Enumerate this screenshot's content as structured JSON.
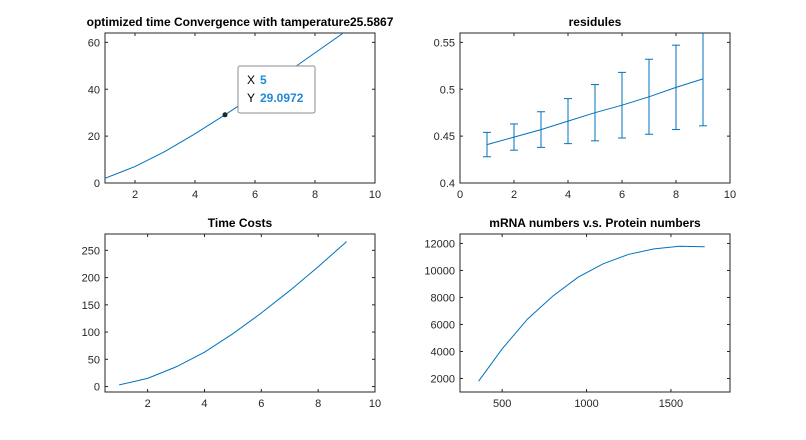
{
  "chart_data": [
    {
      "type": "line",
      "title": "optimized time Convergence with tamperature25.5867",
      "xlim": [
        1,
        10
      ],
      "ylim": [
        0,
        64
      ],
      "xticks": [
        2,
        4,
        6,
        8,
        10
      ],
      "yticks": [
        0,
        20,
        40,
        60
      ],
      "x": [
        1,
        2,
        3,
        4,
        5,
        6,
        7,
        8,
        9
      ],
      "y": [
        2,
        7,
        13.5,
        21,
        29.0972,
        37.5,
        46.5,
        55.5,
        64.5
      ],
      "color": "#0072BD",
      "datatip": {
        "x_label": "X",
        "x_value": "5",
        "y_label": "Y",
        "y_value": "29.0972",
        "x": 5,
        "y": 29.0972
      }
    },
    {
      "type": "line",
      "title": "residules",
      "xlim": [
        0,
        10
      ],
      "ylim": [
        0.4,
        0.56
      ],
      "xticks": [
        0,
        2,
        4,
        6,
        8,
        10
      ],
      "yticks": [
        0.4,
        0.45,
        0.5,
        0.55
      ],
      "x": [
        1,
        2,
        3,
        4,
        5,
        6,
        7,
        8,
        9
      ],
      "y": [
        0.441,
        0.449,
        0.457,
        0.466,
        0.475,
        0.483,
        0.492,
        0.502,
        0.511
      ],
      "err": [
        0.013,
        0.014,
        0.019,
        0.024,
        0.03,
        0.035,
        0.04,
        0.045,
        0.05
      ],
      "color": "#0072BD"
    },
    {
      "type": "line",
      "title": "Time Costs",
      "xlim": [
        0.5,
        10
      ],
      "ylim": [
        -10,
        280
      ],
      "xticks": [
        2,
        4,
        6,
        8,
        10
      ],
      "yticks": [
        0,
        50,
        100,
        150,
        200,
        250
      ],
      "x": [
        1,
        2,
        3,
        4,
        5,
        6,
        7,
        8,
        9
      ],
      "y": [
        3,
        15,
        36,
        63,
        97,
        135,
        176,
        220,
        266
      ],
      "color": "#0072BD"
    },
    {
      "type": "line",
      "title": "mRNA numbers v.s. Protein numbers",
      "xlim": [
        250,
        1850
      ],
      "ylim": [
        1000,
        12700
      ],
      "xticks": [
        500,
        1000,
        1500
      ],
      "yticks": [
        2000,
        4000,
        6000,
        8000,
        10000,
        12000
      ],
      "x": [
        360,
        500,
        650,
        800,
        950,
        1100,
        1250,
        1400,
        1550,
        1700
      ],
      "y": [
        1800,
        4200,
        6400,
        8100,
        9500,
        10500,
        11200,
        11600,
        11800,
        11750
      ],
      "color": "#0072BD"
    }
  ]
}
